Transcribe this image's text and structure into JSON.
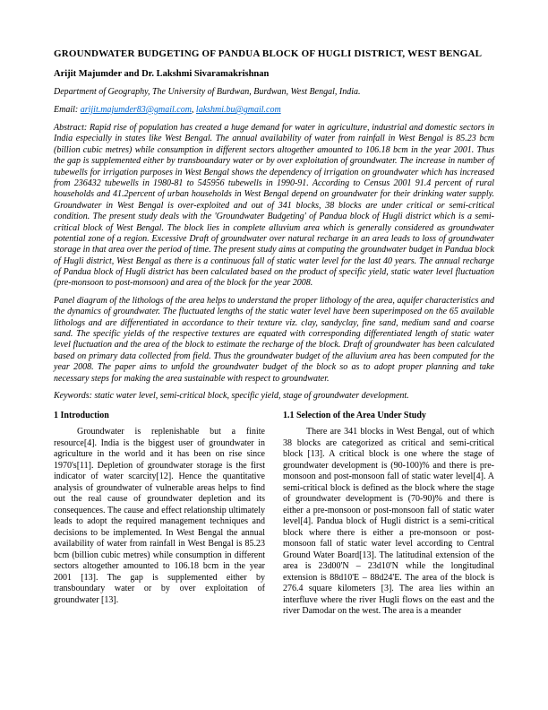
{
  "title": "GROUNDWATER BUDGETING OF PANDUA BLOCK OF HUGLI DISTRICT, WEST BENGAL",
  "authors": "Arijit Majumder and Dr. Lakshmi Sivaramakrishnan",
  "affiliation": "Department of Geography, The University of Burdwan, Burdwan, West Bengal, India.",
  "email_prefix": "Email: ",
  "email1": "arijit.majumder83@gmail.com",
  "email_sep": ", ",
  "email2": "lakshmi.bu@gmail.com",
  "abstract1": "Abstract: Rapid rise of population has created a huge demand for water in agriculture, industrial and domestic sectors in India especially in states like West Bengal. The annual availability of water from rainfall in West Bengal is 85.23 bcm (billion cubic metres) while consumption in different sectors altogether amounted to 106.18 bcm in the year 2001. Thus the gap is supplemented either by transboundary water or by over exploitation of groundwater. The increase in number of tubewells for irrigation purposes in West Bengal shows the dependency of irrigation on groundwater which has increased from 236432 tubewells in 1980-81 to 545956 tubewells in 1990-91. According to Census 2001 91.4 percent of rural households and 41.2percent of urban households in West Bengal depend on groundwater for their drinking water supply.  Groundwater in West Bengal is over-exploited and out of 341 blocks, 38 blocks are under critical or semi-critical condition. The present study deals with the 'Groundwater Budgeting' of Pandua block of Hugli district which is a semi-critical block of West Bengal. The block lies in complete alluvium area which is generally considered as groundwater potential zone of a region. Excessive Draft of groundwater over natural recharge in an area leads to loss of groundwater storage in that area over the period of time. The present study aims at computing the groundwater budget in Pandua block of Hugli district, West Bengal as there is a continuous fall of static water level for the last 40 years.  The annual recharge of Pandua block of Hugli district has been calculated based on the product of specific yield, static water level fluctuation (pre-monsoon to post-monsoon) and area of the block for the year 2008.",
  "abstract2": "Panel diagram of the lithologs of the area helps to understand the proper lithology of the area, aquifer characteristics and the dynamics of groundwater. The fluctuated lengths of the static water level have been superimposed on the 65 available lithologs and are differentiated in accordance to their texture viz. clay, sandyclay, fine sand, medium sand and coarse sand. The specific yields of the respective textures are equated with corresponding differentiated length of static water level fluctuation and the area of the block to estimate the recharge of the block. Draft of groundwater has been calculated based on primary data collected from field. Thus the groundwater budget of the alluvium area has been computed for the year 2008. The paper aims to unfold the groundwater budget of the block so as to adopt proper planning and take necessary steps for making the area sustainable with respect to groundwater.",
  "keywords": "Keywords: static water level, semi-critical block, specific yield, stage of groundwater development.",
  "col1": {
    "head": "1 Introduction",
    "p1": "Groundwater is replenishable but a finite resource[4]. India is the biggest user of groundwater in agriculture in the world and it has been on rise since 1970's[11].  Depletion of groundwater storage is the first indicator of water scarcity[12]. Hence the quantitative analysis of groundwater of vulnerable areas helps to find out the real cause of groundwater depletion and its consequences. The cause and effect relationship ultimately leads to adopt the required management techniques and decisions to be implemented. In West Bengal the annual availability of water from rainfall in West Bengal is 85.23 bcm (billion cubic metres) while consumption in different sectors altogether amounted to 106.18 bcm in the year 2001 [13]. The gap is supplemented either by transboundary water or by over exploitation of groundwater [13]."
  },
  "col2": {
    "head": "1.1 Selection of the Area Under Study",
    "p1": "There are 341 blocks in West Bengal, out of which 38 blocks are categorized as critical and semi-critical block [13]. A critical block is one where the stage of groundwater development is (90-100)% and there is pre-monsoon and post-monsoon fall of static water level[4]. A semi-critical block is defined as the block where the stage of groundwater development is (70-90)% and there is either a pre-monsoon or post-monsoon fall of static water level[4]. Pandua block of Hugli district is a semi-critical block where there is either a pre-monsoon or post- monsoon fall of static water level according to Central Ground Water Board[13]. The latitudinal extension of the area is 23d00'N – 23d10'N while the longitudinal extension is 88d10'E – 88d24'E. The area of the block is 276.4 square kilometers [3].  The area lies within an interfluve where the river Hugli flows on the east and the river Damodar on the west. The area is a meander"
  }
}
